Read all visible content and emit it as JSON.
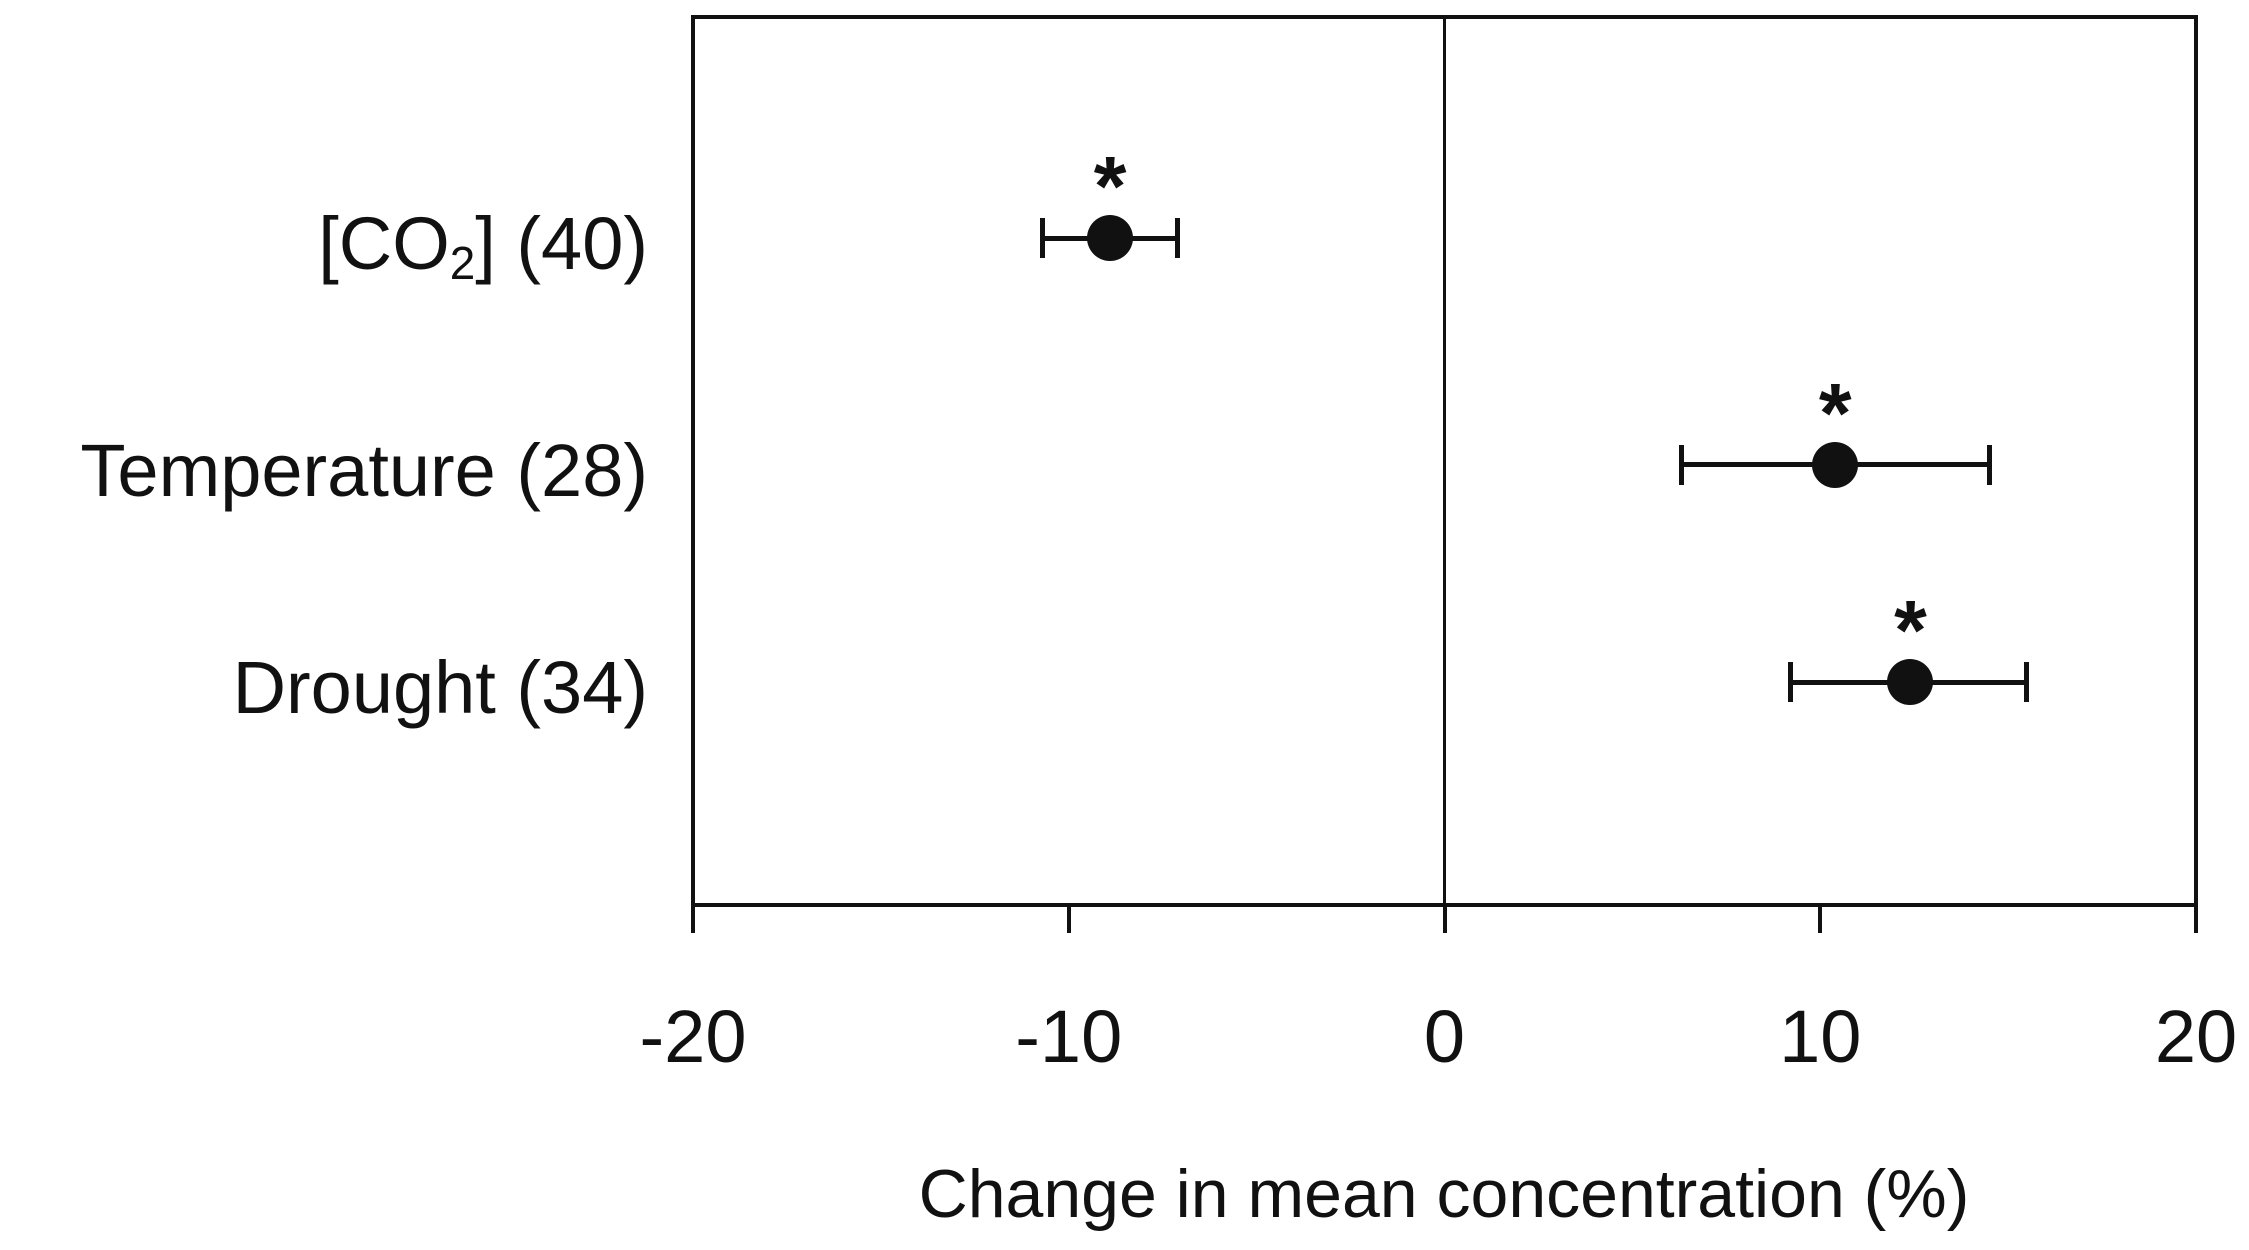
{
  "page": {
    "background_color": "#ffffff",
    "ink_color": "#111111"
  },
  "chart_data": {
    "type": "scatter",
    "subtype": "horizontal-dot-plot-with-error-bars",
    "title": "",
    "xlabel": "Change in mean concentration (%)",
    "ylabel": "",
    "xlim": [
      -20,
      20
    ],
    "xticks": [
      -20,
      -10,
      0,
      10,
      20
    ],
    "xtick_labels": [
      "-20",
      "-10",
      "0",
      "10",
      "20"
    ],
    "grid": false,
    "legend": null,
    "zero_reference_line_x": 0,
    "marker_color": "#111111",
    "significance_marker": "*",
    "points": [
      {
        "category": "[CO2] (40)",
        "label_parts": [
          {
            "text": "[CO"
          },
          {
            "text": "2",
            "subscript": true
          },
          {
            "text": "] (40)"
          }
        ],
        "n_studies": 40,
        "mean": -8.9,
        "ci_low": -10.7,
        "ci_high": -7.1,
        "significant": true
      },
      {
        "category": "Temperature (28)",
        "label_parts": [
          {
            "text": "Temperature (28)"
          }
        ],
        "n_studies": 28,
        "mean": 10.4,
        "ci_low": 6.3,
        "ci_high": 14.5,
        "significant": true
      },
      {
        "category": "Drought (34)",
        "label_parts": [
          {
            "text": "Drought (34)"
          }
        ],
        "n_studies": 34,
        "mean": 12.4,
        "ci_low": 9.2,
        "ci_high": 15.5,
        "significant": true
      }
    ]
  }
}
